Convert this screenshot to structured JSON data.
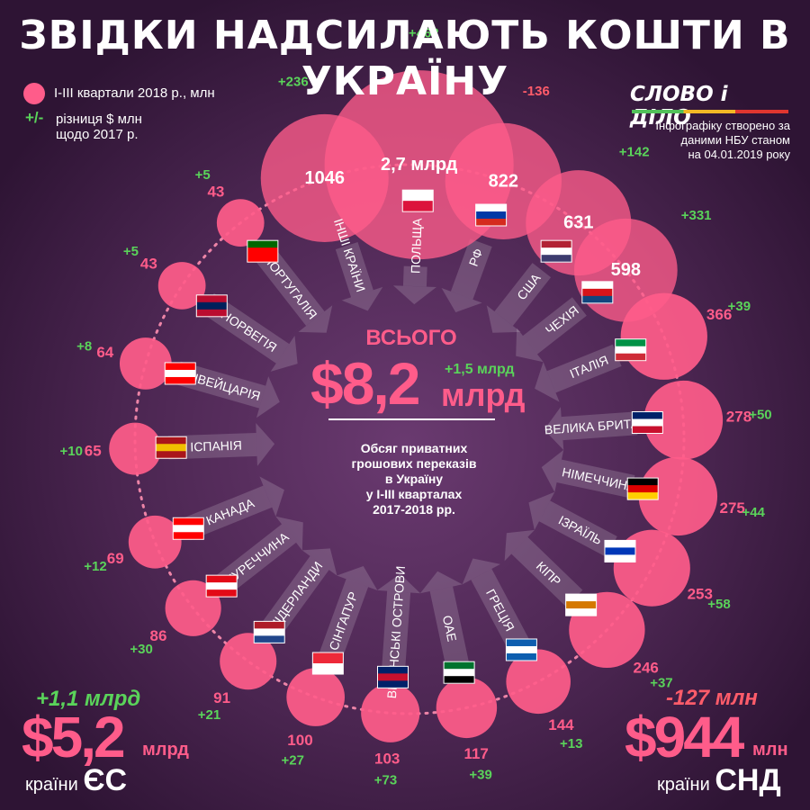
{
  "title": "ЗВІДКИ НАДСИЛАЮТЬ КОШТИ В УКРАЇНУ",
  "legend": {
    "bubbles": "І-ІІІ квартали 2018 р., млн",
    "diff_sign": "+/-",
    "diff_line1": "різниця $ млн",
    "diff_line2": "щодо 2017 р."
  },
  "logo": "СЛОВО і ДІЛО",
  "source": {
    "line1": "Інфографіку створено за",
    "line2": "даними НБУ станом",
    "line3": "на 04.01.2019 року"
  },
  "total": {
    "label": "ВСЬОГО",
    "value": "$8,2",
    "unit": "млрд",
    "diff": "+1,5 млрд"
  },
  "subtitle": {
    "line1": "Обсяг приватних",
    "line2": "грошових переказів",
    "line3": "в Україну",
    "line4": "у І-ІІІ кварталах",
    "line5": "2017-2018 рр."
  },
  "eu": {
    "diff": "+1,1 млрд",
    "value": "$5,2",
    "unit": "млрд",
    "label": "країни",
    "group": "ЄС"
  },
  "cis": {
    "diff": "-127 млн",
    "value": "$944",
    "unit": "млн",
    "label": "країни",
    "group": "СНД"
  },
  "colors": {
    "background": "#3a1c3e",
    "bubble": "#ff5c8a",
    "positive": "#5ad35a",
    "negative": "#ff5c6a"
  },
  "chart_data": {
    "type": "bubble",
    "unit": "млн $",
    "series": [
      {
        "name": "Інші країни",
        "value": 1046,
        "diff": "+236",
        "flag": "none"
      },
      {
        "name": "Польща",
        "value": 2700,
        "display": "2,7 млрд",
        "diff": "+462",
        "flag": "poland"
      },
      {
        "name": "РФ",
        "value": 822,
        "diff": "-136",
        "flag": "russia"
      },
      {
        "name": "США",
        "value": 631,
        "diff": "+142",
        "flag": "usa"
      },
      {
        "name": "Чехія",
        "value": 598,
        "diff": "+331",
        "flag": "czech"
      },
      {
        "name": "Італія",
        "value": 366,
        "diff": "+39",
        "flag": "italy"
      },
      {
        "name": "Велика Британія",
        "value": 278,
        "diff": "+50",
        "flag": "uk"
      },
      {
        "name": "Німеччина",
        "value": 275,
        "diff": "+44",
        "flag": "germany"
      },
      {
        "name": "Ізраїль",
        "value": 253,
        "diff": "+58",
        "flag": "israel"
      },
      {
        "name": "Кіпр",
        "value": 246,
        "diff": "+37",
        "flag": "cyprus"
      },
      {
        "name": "Греція",
        "value": 144,
        "diff": "+13",
        "flag": "greece"
      },
      {
        "name": "ОАЕ",
        "value": 117,
        "diff": "+39",
        "flag": "uae"
      },
      {
        "name": "Віргінські острови",
        "value": 103,
        "diff": "+73",
        "flag": "bvi"
      },
      {
        "name": "Сінгапур",
        "value": 100,
        "diff": "+27",
        "flag": "singapore"
      },
      {
        "name": "Нідерланди",
        "value": 91,
        "diff": "+21",
        "flag": "netherlands"
      },
      {
        "name": "Туреччина",
        "value": 86,
        "diff": "+30",
        "flag": "turkey"
      },
      {
        "name": "Канада",
        "value": 69,
        "diff": "+12",
        "flag": "canada"
      },
      {
        "name": "Іспанія",
        "value": 65,
        "diff": "+10",
        "flag": "spain"
      },
      {
        "name": "Швейцарія",
        "value": 64,
        "diff": "+8",
        "flag": "switzerland"
      },
      {
        "name": "Норвегія",
        "value": 43,
        "diff": "+5",
        "flag": "norway"
      },
      {
        "name": "Португалія",
        "value": 43,
        "diff": "+5",
        "flag": "portugal"
      }
    ]
  }
}
